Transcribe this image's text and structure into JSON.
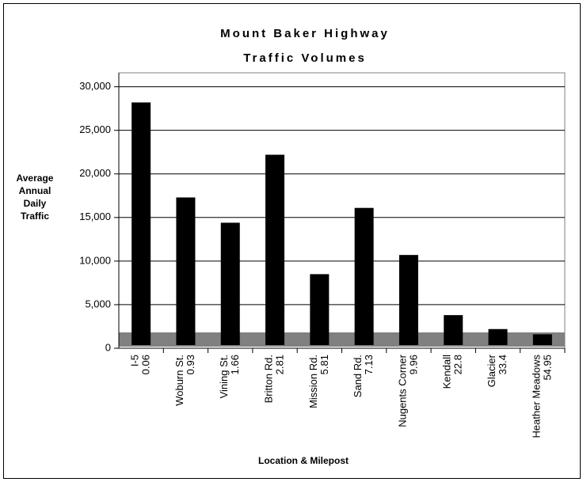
{
  "chart_data": {
    "type": "bar",
    "title": "Mount Baker Highway",
    "subtitle": "Traffic Volumes",
    "y_label": [
      "Average",
      "Annual",
      "Daily",
      "Traffic"
    ],
    "x_label": "Location & Milepost",
    "categories": [
      "I-5",
      "Woburn St.",
      "Vining St.",
      "Britton Rd.",
      "Mission Rd.",
      "Sand Rd.",
      "Nugents Corner",
      "Kendall",
      "Glacier",
      "Heather Meadows"
    ],
    "mileposts": [
      "0.06",
      "0.93",
      "1.66",
      "2.81",
      "5.81",
      "7.13",
      "9.96",
      "22.8",
      "33.4",
      "54.95"
    ],
    "values": [
      28200,
      17300,
      14400,
      22200,
      8500,
      16100,
      10700,
      3800,
      2200,
      1600
    ],
    "color": "#000000",
    "ylim": [
      0,
      31600
    ],
    "yticks": [
      0,
      {
        "value": 5000,
        "label": "5,000"
      },
      {
        "value": 10000,
        "label": "10,000"
      },
      {
        "value": 15000,
        "label": "15,000"
      },
      {
        "value": 20000,
        "label": "20,000"
      },
      {
        "value": 25000,
        "label": "25,000"
      },
      {
        "value": 30000,
        "label": "30,000"
      }
    ],
    "grid": true
  }
}
